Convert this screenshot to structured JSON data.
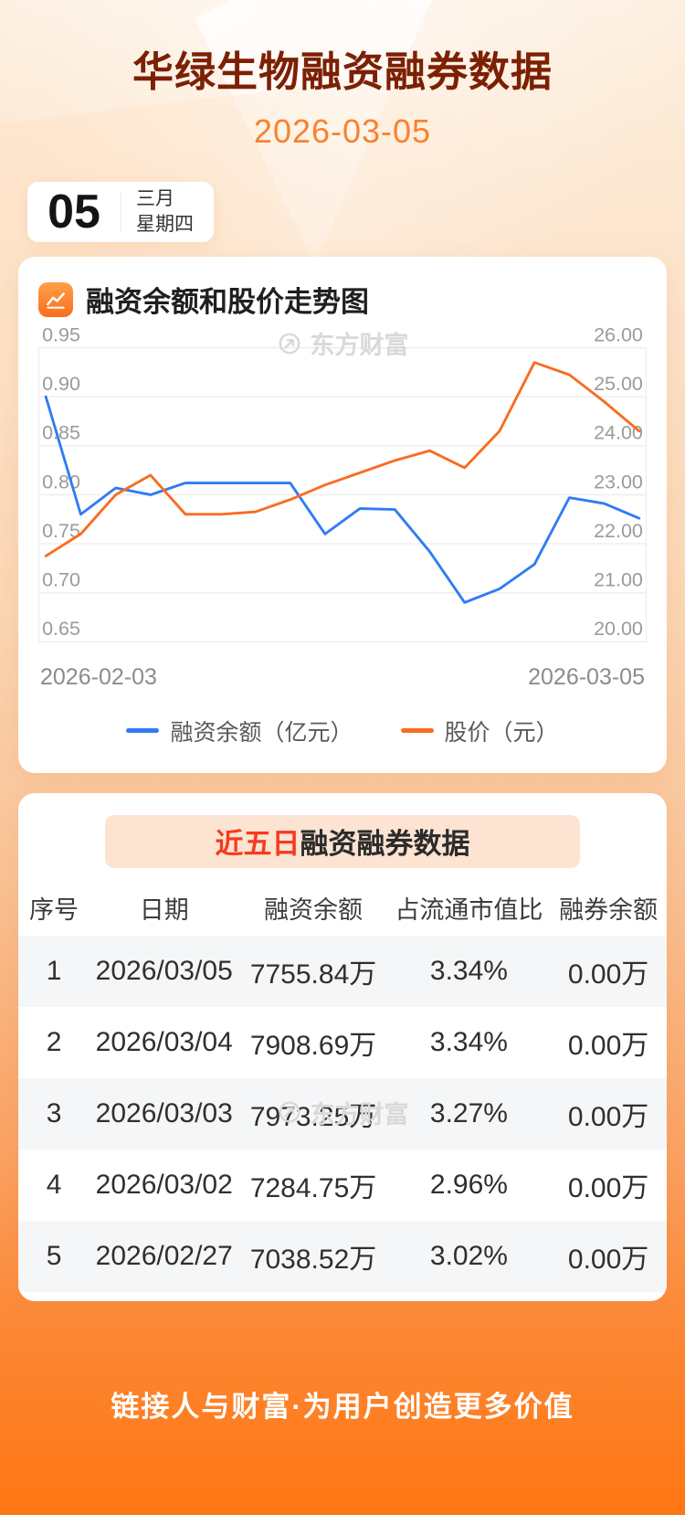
{
  "page": {
    "title": "华绿生物融资融券数据",
    "date": "2026-03-05",
    "footer": "链接人与财富·为用户创造更多价值"
  },
  "badge": {
    "day": "05",
    "month": "三月",
    "weekday": "星期四"
  },
  "watermark": {
    "text": "东方财富"
  },
  "chart_section": {
    "title": "融资余额和股价走势图"
  },
  "chart_data": {
    "type": "line",
    "title": "融资余额和股价走势图",
    "x_axis": {
      "start_label": "2026-02-03",
      "end_label": "2026-03-05"
    },
    "left_axis": {
      "min": 0.65,
      "max": 0.95,
      "ticks": [
        "0.95",
        "0.90",
        "0.85",
        "0.80",
        "0.75",
        "0.70",
        "0.65"
      ]
    },
    "right_axis": {
      "min": 20.0,
      "max": 26.0,
      "ticks": [
        "26.00",
        "25.00",
        "24.00",
        "23.00",
        "22.00",
        "21.00",
        "20.00"
      ]
    },
    "grid": true,
    "legend_position": "bottom",
    "series": [
      {
        "name": "融资余额（亿元）",
        "axis": "left",
        "color": "#2f7bf5",
        "values": [
          0.9,
          0.78,
          0.807,
          0.8,
          0.812,
          0.812,
          0.812,
          0.812,
          0.76,
          0.786,
          0.785,
          0.742,
          0.69,
          0.704,
          0.729,
          0.797,
          0.791,
          0.776
        ]
      },
      {
        "name": "股价（元）",
        "axis": "right",
        "color": "#f96c1f",
        "values": [
          21.75,
          22.2,
          23.0,
          23.4,
          22.6,
          22.6,
          22.65,
          22.9,
          23.2,
          23.45,
          23.7,
          23.9,
          23.55,
          24.3,
          25.7,
          25.45,
          24.9,
          24.3
        ]
      }
    ]
  },
  "table_section": {
    "title_highlight": "近五日",
    "title_rest": "融资融券数据",
    "columns": [
      "序号",
      "日期",
      "融资余额",
      "占流通市值比",
      "融券余额"
    ],
    "rows": [
      [
        "1",
        "2026/03/05",
        "7755.84万",
        "3.34%",
        "0.00万"
      ],
      [
        "2",
        "2026/03/04",
        "7908.69万",
        "3.34%",
        "0.00万"
      ],
      [
        "3",
        "2026/03/03",
        "7973.25万",
        "3.27%",
        "0.00万"
      ],
      [
        "4",
        "2026/03/02",
        "7284.75万",
        "2.96%",
        "0.00万"
      ],
      [
        "5",
        "2026/02/27",
        "7038.52万",
        "3.02%",
        "0.00万"
      ]
    ]
  },
  "colors": {
    "header_title": "#7c2004",
    "header_date": "#f8822e",
    "line_blue": "#2f7bf5",
    "line_orange": "#f96c1f",
    "table_title_highlight": "#f43b1e",
    "table_title_band": "#fce3d2",
    "footer_text": "#ffffff"
  }
}
